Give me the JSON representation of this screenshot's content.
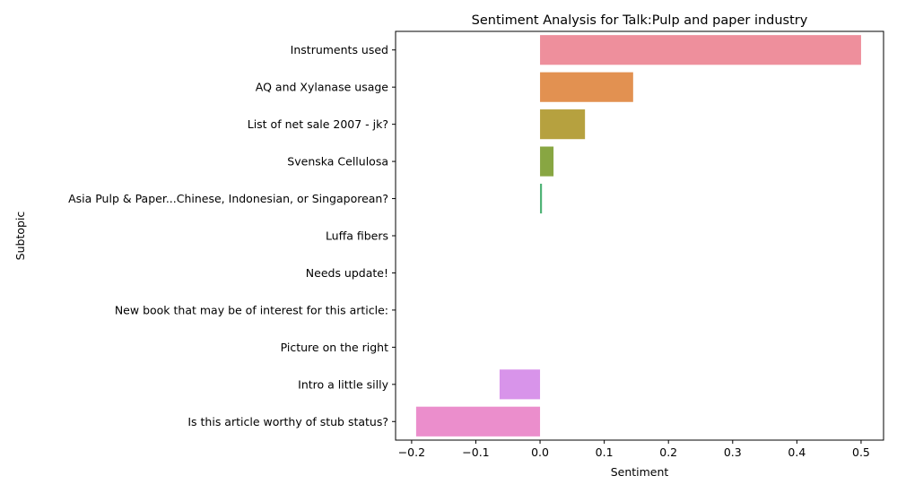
{
  "chart_data": {
    "type": "bar",
    "orientation": "horizontal",
    "title": "Sentiment Analysis for Talk:Pulp and paper industry",
    "xlabel": "Sentiment",
    "ylabel": "Subtopic",
    "xlim": [
      -0.225,
      0.535
    ],
    "xticks": [
      -0.2,
      -0.1,
      0.0,
      0.1,
      0.2,
      0.3,
      0.4,
      0.5
    ],
    "xtick_labels": [
      "−0.2",
      "−0.1",
      "0.0",
      "0.1",
      "0.2",
      "0.3",
      "0.4",
      "0.5"
    ],
    "grid": false,
    "categories": [
      "Instruments used",
      "AQ and Xylanase usage",
      "List of net sale 2007 - jk?",
      "Svenska Cellulosa",
      "Asia Pulp & Paper...Chinese, Indonesian, or Singaporean?",
      "Luffa fibers",
      "Needs update!",
      "New book that may be of interest for this article:",
      "Picture on the right",
      "Intro a little silly",
      "Is this article worthy of stub status?"
    ],
    "values": [
      0.5,
      0.145,
      0.07,
      0.021,
      0.003,
      0.0,
      0.0,
      0.0,
      0.0,
      -0.063,
      -0.193
    ],
    "colors": [
      "#ee8f9c",
      "#e29151",
      "#b6a13f",
      "#88a642",
      "#4bb173",
      "#4db3a4",
      "#52b0c1",
      "#6dabe4",
      "#b29ef5",
      "#d894ea",
      "#eb8ecc"
    ]
  }
}
